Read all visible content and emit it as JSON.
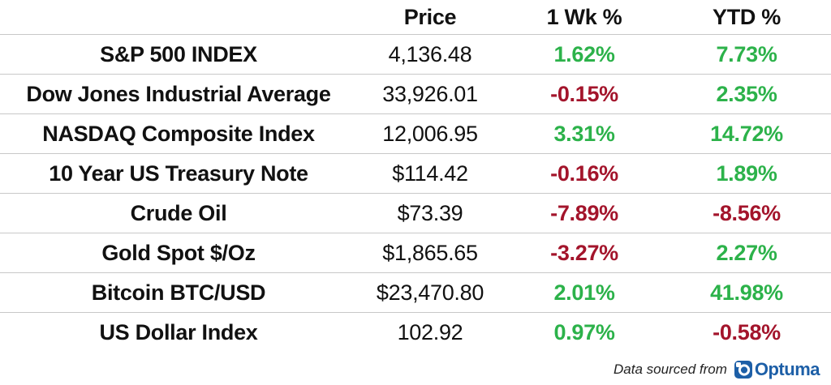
{
  "header": {
    "price": "Price",
    "week": "1 Wk %",
    "ytd": "YTD %"
  },
  "rows": [
    {
      "name": "S&P 500 INDEX",
      "price": "4,136.48",
      "week": "1.62%",
      "ytd": "7.73%"
    },
    {
      "name": "Dow Jones Industrial Average",
      "price": "33,926.01",
      "week": "-0.15%",
      "ytd": "2.35%"
    },
    {
      "name": "NASDAQ Composite Index",
      "price": "12,006.95",
      "week": "3.31%",
      "ytd": "14.72%"
    },
    {
      "name": "10 Year US Treasury Note",
      "price": "$114.42",
      "week": "-0.16%",
      "ytd": "1.89%"
    },
    {
      "name": "Crude Oil",
      "price": "$73.39",
      "week": "-7.89%",
      "ytd": "-8.56%"
    },
    {
      "name": "Gold Spot $/Oz",
      "price": "$1,865.65",
      "week": "-3.27%",
      "ytd": "2.27%"
    },
    {
      "name": "Bitcoin BTC/USD",
      "price": "$23,470.80",
      "week": "2.01%",
      "ytd": "41.98%"
    },
    {
      "name": "US Dollar Index",
      "price": "102.92",
      "week": "0.97%",
      "ytd": "-0.58%"
    }
  ],
  "footer": {
    "source_text": "Data sourced from",
    "logo_text": "Optuma",
    "logo_icon": "optuma-logo-icon"
  },
  "colors": {
    "positive": "#2cb24a",
    "negative": "#a3142b",
    "brand": "#1d5fa7"
  }
}
